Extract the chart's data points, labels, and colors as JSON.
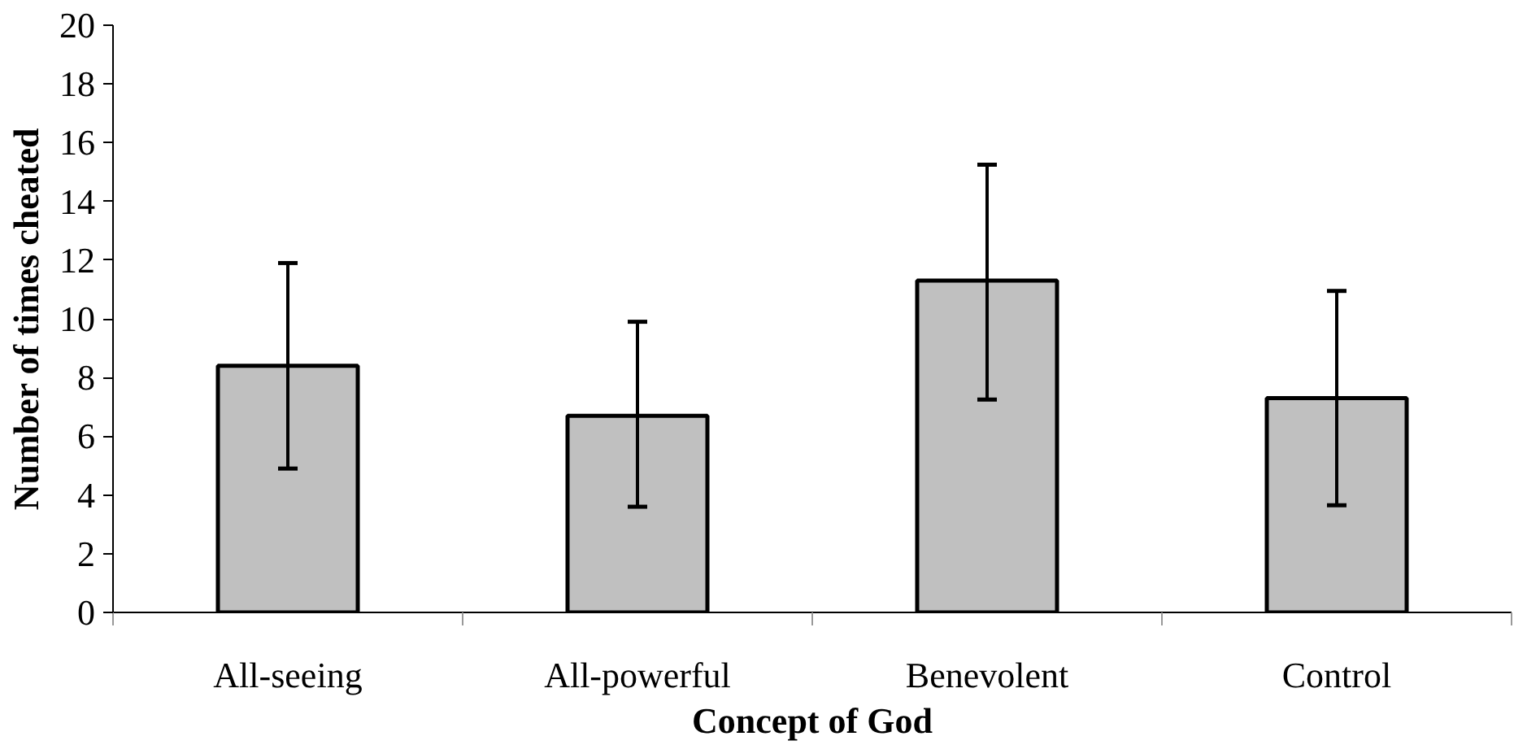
{
  "chart_data": {
    "type": "bar",
    "xlabel": "Concept of God",
    "ylabel": "Number of times cheated",
    "categories": [
      "All-seeing",
      "All-powerful",
      "Benevolent",
      "Control"
    ],
    "values": [
      8.4,
      6.7,
      11.3,
      7.3
    ],
    "color": "#c0c0c0",
    "errors": [
      [
        4.9,
        11.9
      ],
      [
        3.6,
        9.9
      ],
      [
        7.25,
        15.25
      ],
      [
        3.65,
        10.95
      ]
    ],
    "ylim": [
      0,
      20
    ],
    "yticks": [
      0,
      2,
      4,
      6,
      8,
      10,
      12,
      14,
      16,
      18,
      20
    ],
    "grid": false
  }
}
